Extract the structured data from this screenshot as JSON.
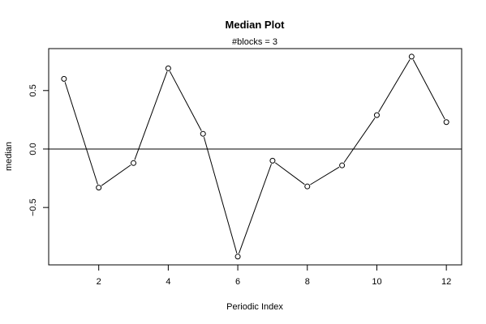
{
  "chart_data": {
    "type": "line",
    "title": "Median Plot",
    "subtitle": "#blocks =  3",
    "xlabel": "Periodic Index",
    "ylabel": "median",
    "x": [
      1,
      2,
      3,
      4,
      5,
      6,
      7,
      8,
      9,
      10,
      11,
      12
    ],
    "series": [
      {
        "values": [
          0.6,
          -0.33,
          -0.12,
          0.69,
          0.13,
          -0.92,
          -0.1,
          -0.32,
          -0.14,
          0.29,
          0.79,
          0.23
        ]
      }
    ],
    "xlim": [
      0.56,
      12.44
    ],
    "ylim": [
      -0.9907,
      0.8587
    ],
    "xticks": [
      2,
      4,
      6,
      8,
      10,
      12
    ],
    "xtick_labels": [
      "2",
      "4",
      "6",
      "8",
      "10",
      "12"
    ],
    "yticks": [
      -0.5,
      0.0,
      0.5
    ],
    "ytick_labels": [
      "−0.5",
      "0.0",
      "0.5"
    ],
    "reference_line_y": 0,
    "marker": "open-circle",
    "grid": false,
    "line_color": "#000000"
  }
}
